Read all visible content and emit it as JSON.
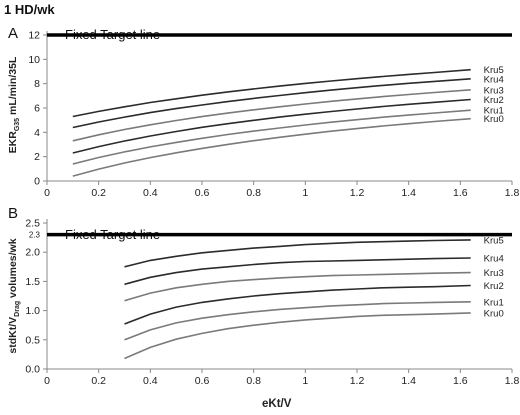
{
  "heading": "1 HD/wk",
  "xlabel": "eKt/V",
  "target_label": "Fixed Target line",
  "colors": {
    "target": "#000000",
    "dark": "#2b2b2b",
    "light": "#7a7a7a",
    "axis": "#888888",
    "text": "#222222"
  },
  "chart_data": [
    {
      "panel": "A",
      "type": "line",
      "ylabel": "EKR",
      "ylabel_sub": "G35",
      "ylabel_rest": " mL/min/35L",
      "xlim": [
        0,
        1.8
      ],
      "ylim": [
        0,
        12
      ],
      "xticks": [
        "0",
        "0.2",
        "0.4",
        "0.6",
        "0.8",
        "1",
        "1.2",
        "1.4",
        "1.6",
        "1.8"
      ],
      "yticks": [
        "0",
        "2",
        "4",
        "6",
        "8",
        "10",
        "12"
      ],
      "target": 12,
      "series": [
        {
          "name": "Kru5",
          "tone": "dark",
          "x": [
            0.1,
            0.2,
            0.3,
            0.4,
            0.5,
            0.6,
            0.7,
            0.8,
            0.9,
            1.0,
            1.1,
            1.2,
            1.3,
            1.4,
            1.5,
            1.64
          ],
          "y": [
            5.3,
            5.72,
            6.1,
            6.45,
            6.76,
            7.05,
            7.32,
            7.57,
            7.8,
            8.02,
            8.22,
            8.41,
            8.59,
            8.76,
            8.92,
            9.15
          ]
        },
        {
          "name": "Kru4",
          "tone": "dark",
          "x": [
            0.1,
            0.2,
            0.3,
            0.4,
            0.5,
            0.6,
            0.7,
            0.8,
            0.9,
            1.0,
            1.1,
            1.2,
            1.3,
            1.4,
            1.5,
            1.64
          ],
          "y": [
            4.4,
            4.85,
            5.25,
            5.62,
            5.95,
            6.25,
            6.53,
            6.79,
            7.03,
            7.26,
            7.47,
            7.67,
            7.86,
            8.03,
            8.19,
            8.4
          ]
        },
        {
          "name": "Kru3",
          "tone": "light",
          "x": [
            0.1,
            0.2,
            0.3,
            0.4,
            0.5,
            0.6,
            0.7,
            0.8,
            0.9,
            1.0,
            1.1,
            1.2,
            1.3,
            1.4,
            1.5,
            1.64
          ],
          "y": [
            3.3,
            3.8,
            4.23,
            4.62,
            4.97,
            5.29,
            5.58,
            5.85,
            6.1,
            6.33,
            6.55,
            6.75,
            6.94,
            7.11,
            7.27,
            7.5
          ]
        },
        {
          "name": "Kru2",
          "tone": "dark",
          "x": [
            0.1,
            0.2,
            0.3,
            0.4,
            0.5,
            0.6,
            0.7,
            0.8,
            0.9,
            1.0,
            1.1,
            1.2,
            1.3,
            1.4,
            1.5,
            1.64
          ],
          "y": [
            2.3,
            2.83,
            3.29,
            3.7,
            4.07,
            4.41,
            4.71,
            4.99,
            5.25,
            5.49,
            5.71,
            5.92,
            6.12,
            6.3,
            6.47,
            6.7
          ]
        },
        {
          "name": "Kru1",
          "tone": "light",
          "x": [
            0.1,
            0.2,
            0.3,
            0.4,
            0.5,
            0.6,
            0.7,
            0.8,
            0.9,
            1.0,
            1.1,
            1.2,
            1.3,
            1.4,
            1.5,
            1.64
          ],
          "y": [
            1.4,
            1.93,
            2.39,
            2.8,
            3.17,
            3.51,
            3.82,
            4.1,
            4.36,
            4.6,
            4.83,
            5.04,
            5.24,
            5.42,
            5.59,
            5.82
          ]
        },
        {
          "name": "Kru0",
          "tone": "light",
          "x": [
            0.1,
            0.2,
            0.3,
            0.4,
            0.5,
            0.6,
            0.7,
            0.8,
            0.9,
            1.0,
            1.1,
            1.2,
            1.3,
            1.4,
            1.5,
            1.64
          ],
          "y": [
            0.4,
            0.98,
            1.48,
            1.92,
            2.32,
            2.68,
            3.01,
            3.31,
            3.59,
            3.85,
            4.09,
            4.31,
            4.52,
            4.71,
            4.89,
            5.12
          ]
        }
      ]
    },
    {
      "panel": "B",
      "type": "line",
      "ylabel": "stdKt/V",
      "ylabel_sub": "Drag",
      "ylabel_rest": " volumes/wk",
      "xlim": [
        0,
        1.8
      ],
      "ylim": [
        0,
        2.5
      ],
      "xticks": [
        "0",
        "0.2",
        "0.4",
        "0.6",
        "0.8",
        "1",
        "1.2",
        "1.4",
        "1.6",
        "1.8"
      ],
      "yticks": [
        "0.0",
        "0.5",
        "1.0",
        "1.5",
        "2.0",
        "2.5"
      ],
      "target_tick": "2.3",
      "target": 2.3,
      "series": [
        {
          "name": "Kru5",
          "tone": "dark",
          "x": [
            0.3,
            0.4,
            0.5,
            0.6,
            0.7,
            0.8,
            0.9,
            1.0,
            1.1,
            1.2,
            1.3,
            1.4,
            1.5,
            1.64
          ],
          "y": [
            1.75,
            1.86,
            1.93,
            1.99,
            2.03,
            2.07,
            2.1,
            2.13,
            2.15,
            2.17,
            2.18,
            2.19,
            2.2,
            2.21
          ]
        },
        {
          "name": "Kru4",
          "tone": "dark",
          "x": [
            0.3,
            0.4,
            0.5,
            0.6,
            0.7,
            0.8,
            0.9,
            1.0,
            1.1,
            1.2,
            1.3,
            1.4,
            1.5,
            1.64
          ],
          "y": [
            1.45,
            1.57,
            1.65,
            1.71,
            1.75,
            1.79,
            1.82,
            1.84,
            1.85,
            1.86,
            1.87,
            1.88,
            1.89,
            1.9
          ]
        },
        {
          "name": "Kru3",
          "tone": "light",
          "x": [
            0.3,
            0.4,
            0.5,
            0.6,
            0.7,
            0.8,
            0.9,
            1.0,
            1.1,
            1.2,
            1.3,
            1.4,
            1.5,
            1.64
          ],
          "y": [
            1.17,
            1.3,
            1.39,
            1.45,
            1.5,
            1.53,
            1.56,
            1.58,
            1.6,
            1.61,
            1.62,
            1.63,
            1.64,
            1.65
          ]
        },
        {
          "name": "Kru2",
          "tone": "dark",
          "x": [
            0.3,
            0.4,
            0.5,
            0.6,
            0.7,
            0.8,
            0.9,
            1.0,
            1.1,
            1.2,
            1.3,
            1.4,
            1.5,
            1.64
          ],
          "y": [
            0.77,
            0.94,
            1.06,
            1.14,
            1.2,
            1.25,
            1.29,
            1.32,
            1.35,
            1.37,
            1.39,
            1.4,
            1.41,
            1.43
          ]
        },
        {
          "name": "Kru1",
          "tone": "light",
          "x": [
            0.3,
            0.4,
            0.5,
            0.6,
            0.7,
            0.8,
            0.9,
            1.0,
            1.1,
            1.2,
            1.3,
            1.4,
            1.5,
            1.64
          ],
          "y": [
            0.5,
            0.67,
            0.79,
            0.87,
            0.93,
            0.98,
            1.02,
            1.05,
            1.08,
            1.1,
            1.12,
            1.13,
            1.14,
            1.15
          ]
        },
        {
          "name": "Kru0",
          "tone": "light",
          "x": [
            0.3,
            0.4,
            0.5,
            0.6,
            0.7,
            0.8,
            0.9,
            1.0,
            1.1,
            1.2,
            1.3,
            1.4,
            1.5,
            1.64
          ],
          "y": [
            0.18,
            0.37,
            0.51,
            0.61,
            0.69,
            0.75,
            0.8,
            0.84,
            0.87,
            0.9,
            0.92,
            0.93,
            0.94,
            0.96
          ]
        }
      ]
    }
  ]
}
